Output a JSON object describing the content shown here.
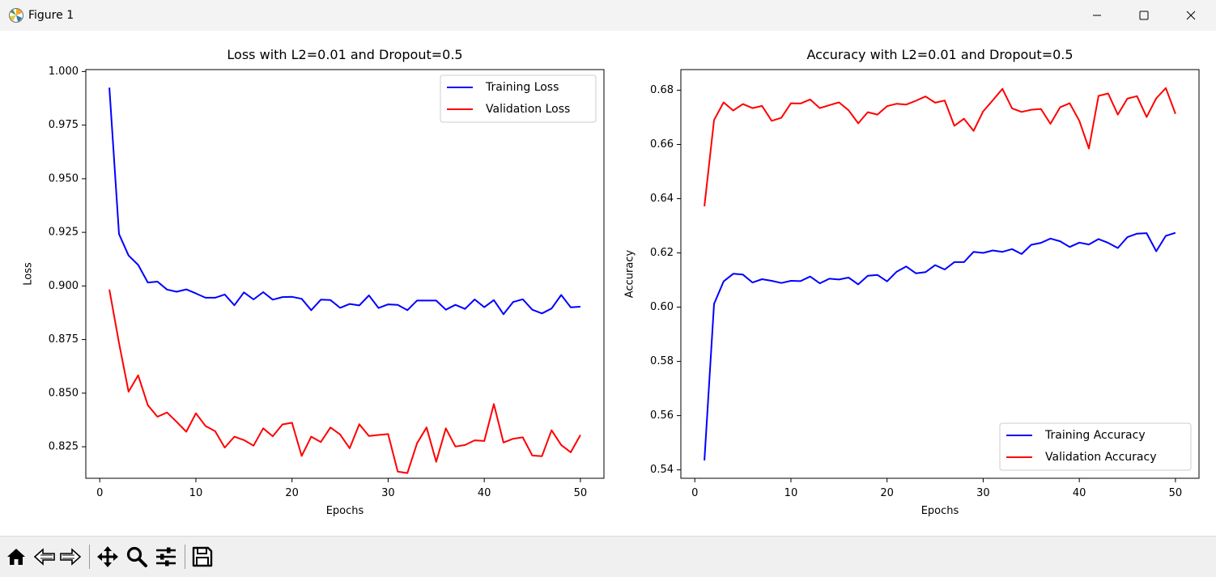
{
  "window": {
    "title": "Figure 1"
  },
  "toolbar": {
    "buttons": [
      "home-icon",
      "back-icon",
      "forward-icon",
      "pan-icon",
      "zoom-icon",
      "configure-subplots-icon",
      "save-icon"
    ]
  },
  "colors": {
    "training": "#0000ff",
    "validation": "#ff0000",
    "titlebar": "#f3f3f3",
    "toolbar": "#f0f0f0"
  },
  "chart_data": [
    {
      "type": "line",
      "title": "Loss with L2=0.01 and Dropout=0.5",
      "xlabel": "Epochs",
      "ylabel": "Loss",
      "xlim": [
        -1.45,
        52.45
      ],
      "ylim": [
        0.8103,
        1.0009
      ],
      "xticks": [
        0,
        10,
        20,
        30,
        40,
        50
      ],
      "xtick_labels": [
        "0",
        "10",
        "20",
        "30",
        "40",
        "50"
      ],
      "yticks": [
        0.825,
        0.85,
        0.875,
        0.9,
        0.925,
        0.95,
        0.975,
        1.0
      ],
      "ytick_labels": [
        "0.825",
        "0.850",
        "0.875",
        "0.900",
        "0.925",
        "0.950",
        "0.975",
        "1.000"
      ],
      "legend_position": "top-right",
      "grid": false,
      "x": [
        1,
        2,
        3,
        4,
        5,
        6,
        7,
        8,
        9,
        10,
        11,
        12,
        13,
        14,
        15,
        16,
        17,
        18,
        19,
        20,
        21,
        22,
        23,
        24,
        25,
        26,
        27,
        28,
        29,
        30,
        31,
        32,
        33,
        34,
        35,
        36,
        37,
        38,
        39,
        40,
        41,
        42,
        43,
        44,
        45,
        46,
        47,
        48,
        49,
        50
      ],
      "series": [
        {
          "name": "Training Loss",
          "color": "#0000ff",
          "values": [
            0.9925,
            0.9242,
            0.9142,
            0.9098,
            0.9016,
            0.902,
            0.8983,
            0.8973,
            0.8984,
            0.8965,
            0.8945,
            0.8945,
            0.896,
            0.891,
            0.897,
            0.8937,
            0.8971,
            0.8936,
            0.8948,
            0.8949,
            0.894,
            0.8887,
            0.8936,
            0.8934,
            0.8898,
            0.8916,
            0.8909,
            0.8956,
            0.8897,
            0.8914,
            0.8912,
            0.8887,
            0.8932,
            0.8932,
            0.8932,
            0.8889,
            0.8912,
            0.8893,
            0.8937,
            0.8901,
            0.8934,
            0.8868,
            0.8925,
            0.8938,
            0.8889,
            0.8872,
            0.8895,
            0.8958,
            0.89,
            0.8903
          ]
        },
        {
          "name": "Validation Loss",
          "color": "#ff0000",
          "values": [
            0.8983,
            0.8734,
            0.8507,
            0.8583,
            0.8444,
            0.839,
            0.841,
            0.8366,
            0.832,
            0.8406,
            0.8347,
            0.8323,
            0.8246,
            0.8297,
            0.8281,
            0.8255,
            0.8336,
            0.8299,
            0.8354,
            0.8362,
            0.8207,
            0.8297,
            0.8272,
            0.834,
            0.8307,
            0.8243,
            0.8355,
            0.83,
            0.8305,
            0.8309,
            0.8134,
            0.8127,
            0.8266,
            0.834,
            0.818,
            0.8336,
            0.8251,
            0.8258,
            0.828,
            0.8277,
            0.8449,
            0.827,
            0.8287,
            0.8294,
            0.8209,
            0.8206,
            0.8327,
            0.8258,
            0.8224,
            0.8305
          ]
        }
      ]
    },
    {
      "type": "line",
      "title": "Accuracy with L2=0.01 and Dropout=0.5",
      "xlabel": "Epochs",
      "ylabel": "Accuracy",
      "xlim": [
        -1.45,
        52.45
      ],
      "ylim": [
        0.5369,
        0.6876
      ],
      "xticks": [
        0,
        10,
        20,
        30,
        40,
        50
      ],
      "xtick_labels": [
        "0",
        "10",
        "20",
        "30",
        "40",
        "50"
      ],
      "yticks": [
        0.54,
        0.56,
        0.58,
        0.6,
        0.62,
        0.64,
        0.66,
        0.68
      ],
      "ytick_labels": [
        "0.54",
        "0.56",
        "0.58",
        "0.60",
        "0.62",
        "0.64",
        "0.66",
        "0.68"
      ],
      "legend_position": "lower-right",
      "grid": false,
      "x": [
        1,
        2,
        3,
        4,
        5,
        6,
        7,
        8,
        9,
        10,
        11,
        12,
        13,
        14,
        15,
        16,
        17,
        18,
        19,
        20,
        21,
        22,
        23,
        24,
        25,
        26,
        27,
        28,
        29,
        30,
        31,
        32,
        33,
        34,
        35,
        36,
        37,
        38,
        39,
        40,
        41,
        42,
        43,
        44,
        45,
        46,
        47,
        48,
        49,
        50
      ],
      "series": [
        {
          "name": "Training Accuracy",
          "color": "#0000ff",
          "values": [
            0.5435,
            0.6012,
            0.6095,
            0.6123,
            0.612,
            0.6091,
            0.6103,
            0.6097,
            0.6089,
            0.6097,
            0.6096,
            0.6113,
            0.6088,
            0.6105,
            0.6102,
            0.6109,
            0.6084,
            0.6116,
            0.6119,
            0.6095,
            0.6131,
            0.615,
            0.6125,
            0.6129,
            0.6155,
            0.6139,
            0.6166,
            0.6166,
            0.6204,
            0.62,
            0.6209,
            0.6204,
            0.6214,
            0.6196,
            0.623,
            0.6237,
            0.6253,
            0.6243,
            0.6222,
            0.6238,
            0.6231,
            0.6251,
            0.6237,
            0.6218,
            0.6258,
            0.6271,
            0.6273,
            0.6206,
            0.6263,
            0.6274
          ]
        },
        {
          "name": "Validation Accuracy",
          "color": "#ff0000",
          "values": [
            0.6372,
            0.669,
            0.6755,
            0.6725,
            0.6749,
            0.6734,
            0.6742,
            0.6687,
            0.6698,
            0.6752,
            0.6751,
            0.6766,
            0.6734,
            0.6745,
            0.6755,
            0.6726,
            0.6678,
            0.6719,
            0.671,
            0.6741,
            0.675,
            0.6747,
            0.6761,
            0.6777,
            0.6754,
            0.6762,
            0.6669,
            0.6695,
            0.665,
            0.6722,
            0.6763,
            0.6805,
            0.6733,
            0.672,
            0.6728,
            0.6731,
            0.6676,
            0.6737,
            0.6752,
            0.6687,
            0.6585,
            0.6779,
            0.6788,
            0.671,
            0.6769,
            0.6778,
            0.6701,
            0.677,
            0.6808,
            0.6713
          ]
        }
      ]
    }
  ]
}
